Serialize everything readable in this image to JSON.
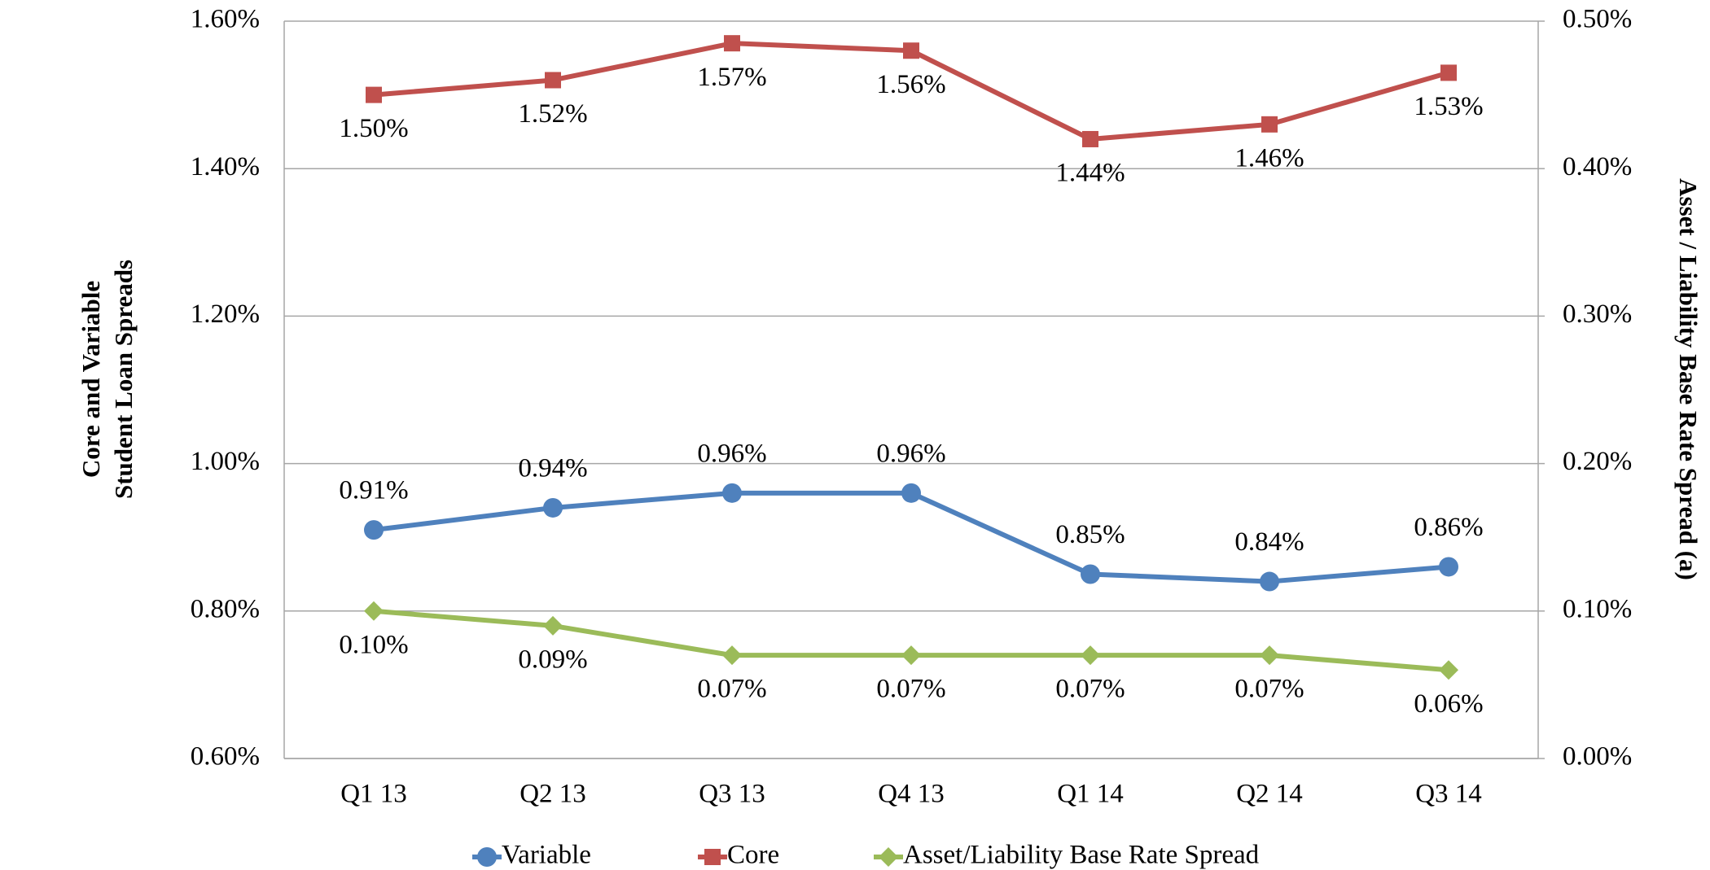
{
  "chart_data": {
    "type": "line",
    "y_label": [
      "Core and Variable",
      "Student Loan Spreads"
    ],
    "y2_label": "Asset / Liability Base Rate Spread (a)",
    "categories": [
      "Q1 13",
      "Q2 13",
      "Q3 13",
      "Q4 13",
      "Q1 14",
      "Q2 14",
      "Q3 14"
    ],
    "ylim": [
      0.6,
      1.6
    ],
    "yticks": [
      {
        "value": 0.6,
        "label": "0.60%"
      },
      {
        "value": 0.8,
        "label": "0.80%"
      },
      {
        "value": 1.0,
        "label": "1.00%"
      },
      {
        "value": 1.2,
        "label": "1.20%"
      },
      {
        "value": 1.4,
        "label": "1.40%"
      },
      {
        "value": 1.6,
        "label": "1.60%"
      }
    ],
    "y2lim": [
      0,
      0.5
    ],
    "y2ticks": [
      {
        "value": 0,
        "label": "0.00%"
      },
      {
        "value": 0.1,
        "label": "0.10%"
      },
      {
        "value": 0.2,
        "label": "0.20%"
      },
      {
        "value": 0.3,
        "label": "0.30%"
      },
      {
        "value": 0.4,
        "label": "0.40%"
      },
      {
        "value": 0.5,
        "label": "0.50%"
      }
    ],
    "grid": true,
    "legend": "bottom",
    "series": [
      {
        "name": "Variable",
        "color": "#4f81bd",
        "marker": "circle",
        "label_position": "above",
        "values": [
          0.91,
          0.94,
          0.96,
          0.96,
          0.85,
          0.84,
          0.86
        ],
        "value_labels": [
          "0.91%",
          "0.94%",
          "0.96%",
          "0.96%",
          "0.85%",
          "0.84%",
          "0.86%"
        ]
      },
      {
        "name": "Core",
        "color": "#c0504d",
        "marker": "square",
        "label_position": "below",
        "values": [
          1.5,
          1.52,
          1.57,
          1.56,
          1.44,
          1.46,
          1.53
        ],
        "value_labels": [
          "1.50%",
          "1.52%",
          "1.57%",
          "1.56%",
          "1.44%",
          "1.46%",
          "1.53%"
        ]
      },
      {
        "name": "Asset/Liability Base Rate Spread",
        "color": "#9bbb59",
        "marker": "diamond",
        "label_position": "below",
        "axis": "y2",
        "values": [
          0.1,
          0.09,
          0.07,
          0.07,
          0.07,
          0.07,
          0.06
        ],
        "value_labels": [
          "0.10%",
          "0.09%",
          "0.07%",
          "0.07%",
          "0.07%",
          "0.07%",
          "0.06%"
        ]
      }
    ]
  }
}
